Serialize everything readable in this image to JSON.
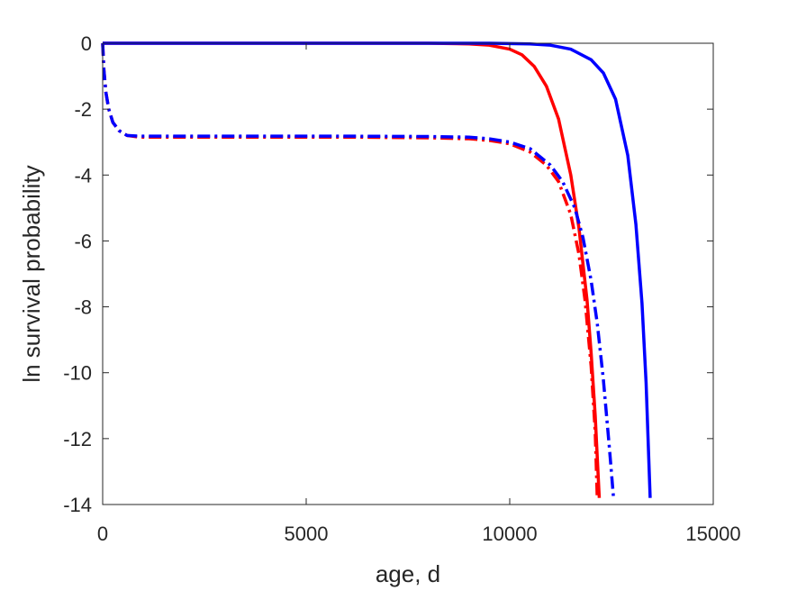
{
  "chart_data": {
    "type": "line",
    "title": "",
    "xlabel": "age, d",
    "ylabel": "ln survival probability",
    "xlim": [
      0,
      15000
    ],
    "ylim": [
      -14,
      0
    ],
    "xticks": [
      0,
      5000,
      10000,
      15000
    ],
    "yticks": [
      0,
      -2,
      -4,
      -6,
      -8,
      -10,
      -12,
      -14
    ],
    "xtick_labels": [
      "0",
      "5000",
      "10000",
      "15000"
    ],
    "ytick_labels": [
      "0",
      "-2",
      "-4",
      "-6",
      "-8",
      "-10",
      "-12",
      "-14"
    ],
    "grid": false,
    "series": [
      {
        "color": "#ff0000",
        "style": "solid",
        "x": [
          0,
          2000,
          4000,
          6000,
          8000,
          9000,
          9500,
          10000,
          10300,
          10600,
          10900,
          11200,
          11500,
          11700,
          11900,
          12000,
          12100,
          12200
        ],
        "y": [
          0,
          0,
          0,
          0,
          0,
          -0.02,
          -0.06,
          -0.18,
          -0.35,
          -0.7,
          -1.3,
          -2.3,
          -4.0,
          -5.6,
          -7.8,
          -9.4,
          -11.3,
          -13.8
        ]
      },
      {
        "color": "#0000ff",
        "style": "solid",
        "x": [
          0,
          2000,
          4000,
          6000,
          8000,
          9500,
          10500,
          11000,
          11500,
          12000,
          12300,
          12600,
          12900,
          13100,
          13250,
          13350,
          13450
        ],
        "y": [
          0,
          0,
          0,
          0,
          0,
          0,
          -0.02,
          -0.06,
          -0.18,
          -0.5,
          -0.9,
          -1.7,
          -3.4,
          -5.5,
          -7.9,
          -10.3,
          -13.8
        ]
      },
      {
        "color": "#ff0000",
        "style": "dashdot",
        "x": [
          0,
          30,
          80,
          150,
          250,
          400,
          600,
          900,
          2000,
          4000,
          6000,
          8000,
          9000,
          9500,
          10000,
          10500,
          10900,
          11200,
          11500,
          11700,
          11850,
          12000,
          12100,
          12150
        ],
        "y": [
          0,
          -0.8,
          -1.5,
          -2.0,
          -2.4,
          -2.65,
          -2.8,
          -2.85,
          -2.85,
          -2.85,
          -2.85,
          -2.87,
          -2.9,
          -2.95,
          -3.05,
          -3.3,
          -3.7,
          -4.2,
          -5.2,
          -6.4,
          -7.8,
          -9.8,
          -11.8,
          -13.8
        ]
      },
      {
        "color": "#0000ff",
        "style": "dashdot",
        "x": [
          0,
          30,
          80,
          150,
          250,
          400,
          600,
          900,
          2000,
          4000,
          6000,
          8000,
          9000,
          9500,
          10000,
          10500,
          11000,
          11300,
          11600,
          11800,
          12000,
          12150,
          12300,
          12450,
          12550
        ],
        "y": [
          0,
          -0.8,
          -1.5,
          -2.0,
          -2.4,
          -2.65,
          -2.8,
          -2.82,
          -2.82,
          -2.82,
          -2.82,
          -2.83,
          -2.85,
          -2.9,
          -3.0,
          -3.2,
          -3.7,
          -4.2,
          -5.0,
          -5.9,
          -7.2,
          -8.5,
          -10.2,
          -12.3,
          -13.8
        ]
      }
    ]
  }
}
